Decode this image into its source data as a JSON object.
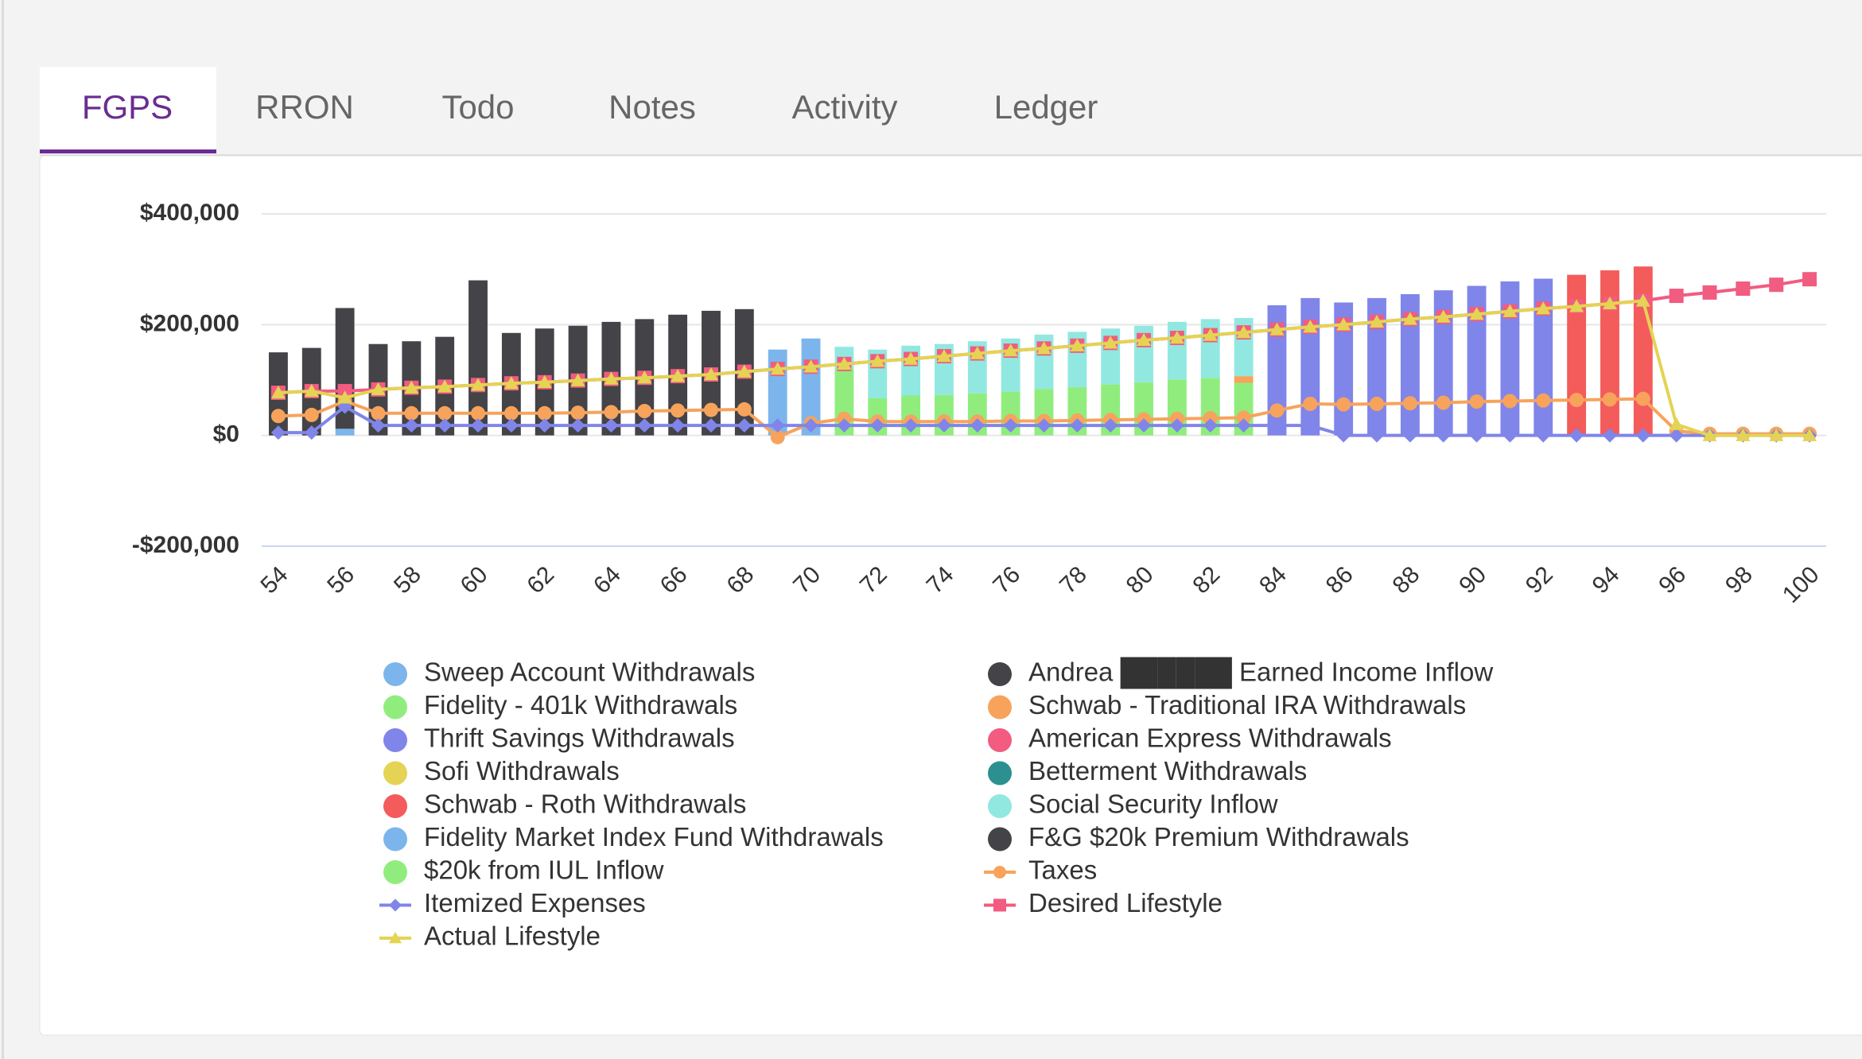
{
  "tabs": [
    "FGPS",
    "RRON",
    "Todo",
    "Notes",
    "Activity",
    "Ledger"
  ],
  "active_tab": 0,
  "chart_data": {
    "type": "bar",
    "stacked": true,
    "categories": [
      "54",
      null,
      "56",
      null,
      "58",
      null,
      "60",
      null,
      "62",
      null,
      "64",
      null,
      "66",
      null,
      "68",
      null,
      "70",
      null,
      "72",
      null,
      "74",
      null,
      "76",
      null,
      "78",
      null,
      "80",
      null,
      "82",
      null,
      "84",
      null,
      "86",
      null,
      "88",
      null,
      "90",
      null,
      "92",
      null,
      "94",
      null,
      "96",
      null,
      "98",
      null,
      "100"
    ],
    "ylim": [
      -200000,
      400000
    ],
    "yticks": [
      {
        "value": -200000,
        "label": "-$200,000"
      },
      {
        "value": 0,
        "label": "$0"
      },
      {
        "value": 200000,
        "label": "$200,000"
      },
      {
        "value": 400000,
        "label": "$400,000"
      }
    ],
    "grid": true,
    "series": [
      {
        "name": "Sweep Account Withdrawals",
        "color": "#7cb5ec",
        "values": [
          0,
          0,
          12000,
          0,
          0,
          0,
          0,
          0,
          0,
          0,
          0,
          0,
          0,
          0,
          0,
          0,
          25000,
          0,
          0,
          0,
          0,
          0,
          0,
          0,
          0,
          0,
          0,
          0,
          0,
          0,
          0,
          0,
          0,
          0,
          0,
          0,
          0,
          0,
          0,
          0,
          0,
          0,
          0,
          0,
          0,
          0,
          0
        ]
      },
      {
        "name": "Andrea ██████ Earned Income Inflow",
        "color": "#434348",
        "values": [
          150000,
          158000,
          218000,
          165000,
          170000,
          178000,
          280000,
          185000,
          193000,
          198000,
          205000,
          210000,
          218000,
          225000,
          228000,
          0,
          0,
          0,
          0,
          0,
          0,
          0,
          0,
          0,
          0,
          0,
          0,
          0,
          0,
          0,
          0,
          0,
          0,
          0,
          0,
          0,
          0,
          0,
          0,
          0,
          0,
          0,
          0,
          0,
          0,
          0,
          0
        ]
      },
      {
        "name": "Fidelity - 401k Withdrawals",
        "color": "#90ed7d",
        "values": [
          0,
          0,
          0,
          0,
          0,
          0,
          0,
          0,
          0,
          0,
          0,
          0,
          0,
          0,
          0,
          0,
          0,
          120000,
          67000,
          72000,
          73000,
          76000,
          79000,
          84000,
          87000,
          92000,
          96000,
          101000,
          104000,
          95000,
          0,
          0,
          0,
          0,
          0,
          0,
          0,
          0,
          0,
          0,
          0,
          0,
          0,
          0,
          0,
          0,
          0
        ]
      },
      {
        "name": "Schwab - Traditional IRA Withdrawals",
        "color": "#f7a35c",
        "values": [
          0,
          0,
          0,
          0,
          0,
          0,
          0,
          0,
          0,
          0,
          0,
          0,
          0,
          0,
          0,
          0,
          0,
          0,
          0,
          0,
          0,
          0,
          0,
          0,
          0,
          0,
          0,
          0,
          0,
          12000,
          0,
          0,
          0,
          0,
          0,
          0,
          0,
          0,
          0,
          0,
          0,
          0,
          0,
          0,
          0,
          0,
          0
        ]
      },
      {
        "name": "Thrift Savings Withdrawals",
        "color": "#8085e9",
        "values": [
          0,
          0,
          0,
          0,
          0,
          0,
          0,
          0,
          0,
          0,
          0,
          0,
          0,
          0,
          0,
          0,
          0,
          0,
          0,
          0,
          0,
          0,
          0,
          0,
          0,
          0,
          0,
          0,
          0,
          0,
          235000,
          248000,
          240000,
          248000,
          255000,
          262000,
          270000,
          278000,
          283000,
          0,
          0,
          0,
          0,
          0,
          0,
          0,
          0
        ]
      },
      {
        "name": "American Express Withdrawals",
        "color": "#f15c80",
        "values": [
          0,
          0,
          0,
          0,
          0,
          0,
          0,
          0,
          0,
          0,
          0,
          0,
          0,
          0,
          0,
          0,
          0,
          0,
          0,
          0,
          0,
          0,
          0,
          0,
          0,
          0,
          0,
          0,
          0,
          0,
          0,
          0,
          0,
          0,
          0,
          0,
          0,
          0,
          0,
          0,
          0,
          0,
          0,
          0,
          0,
          0,
          0
        ]
      },
      {
        "name": "Sofi Withdrawals",
        "color": "#e4d354",
        "values": [
          0,
          0,
          0,
          0,
          0,
          0,
          0,
          0,
          0,
          0,
          0,
          0,
          0,
          0,
          0,
          0,
          0,
          0,
          0,
          0,
          0,
          0,
          0,
          0,
          0,
          0,
          0,
          0,
          0,
          0,
          0,
          0,
          0,
          0,
          0,
          0,
          0,
          0,
          0,
          0,
          0,
          0,
          0,
          0,
          0,
          0,
          0
        ]
      },
      {
        "name": "Betterment Withdrawals",
        "color": "#2b908f",
        "values": [
          0,
          0,
          0,
          0,
          0,
          0,
          0,
          0,
          0,
          0,
          0,
          0,
          0,
          0,
          0,
          0,
          0,
          0,
          0,
          0,
          0,
          0,
          0,
          0,
          0,
          0,
          0,
          0,
          0,
          0,
          0,
          0,
          0,
          0,
          0,
          0,
          0,
          0,
          0,
          0,
          0,
          0,
          0,
          0,
          0,
          0,
          0
        ]
      },
      {
        "name": "Schwab - Roth Withdrawals",
        "color": "#f45b5b",
        "values": [
          0,
          0,
          0,
          0,
          0,
          0,
          0,
          0,
          0,
          0,
          0,
          0,
          0,
          0,
          0,
          0,
          0,
          0,
          0,
          0,
          0,
          0,
          0,
          0,
          0,
          0,
          0,
          0,
          0,
          0,
          0,
          0,
          0,
          0,
          0,
          0,
          0,
          0,
          0,
          290000,
          298000,
          305000,
          0,
          0,
          0,
          0,
          0
        ]
      },
      {
        "name": "Social Security Inflow",
        "color": "#91e8e1",
        "values": [
          0,
          0,
          0,
          0,
          0,
          0,
          0,
          0,
          0,
          0,
          0,
          0,
          0,
          0,
          0,
          0,
          0,
          40000,
          88000,
          90000,
          92000,
          94000,
          96000,
          98000,
          100000,
          101000,
          102000,
          104000,
          106000,
          105000,
          0,
          0,
          0,
          0,
          0,
          0,
          0,
          0,
          0,
          0,
          0,
          0,
          0,
          0,
          0,
          0,
          0
        ]
      },
      {
        "name": "Fidelity Market Index Fund Withdrawals",
        "color": "#7cb5ec",
        "values": [
          0,
          0,
          0,
          0,
          0,
          0,
          0,
          0,
          0,
          0,
          0,
          0,
          0,
          0,
          0,
          155000,
          150000,
          0,
          0,
          0,
          0,
          0,
          0,
          0,
          0,
          0,
          0,
          0,
          0,
          0,
          0,
          0,
          0,
          0,
          0,
          0,
          0,
          0,
          0,
          0,
          0,
          0,
          0,
          0,
          0,
          0,
          0
        ]
      },
      {
        "name": "F&G $20k Premium Withdrawals",
        "color": "#434348",
        "values": [
          0,
          0,
          0,
          0,
          0,
          0,
          0,
          0,
          0,
          0,
          0,
          0,
          0,
          0,
          0,
          0,
          0,
          0,
          0,
          0,
          0,
          0,
          0,
          0,
          0,
          0,
          0,
          0,
          0,
          0,
          0,
          0,
          0,
          0,
          0,
          0,
          0,
          0,
          0,
          0,
          0,
          0,
          0,
          0,
          0,
          0,
          0
        ]
      },
      {
        "name": "$20k from IUL Inflow",
        "color": "#90ed7d",
        "values": [
          0,
          0,
          0,
          0,
          0,
          0,
          0,
          0,
          0,
          0,
          0,
          0,
          0,
          0,
          0,
          0,
          0,
          0,
          0,
          0,
          0,
          0,
          0,
          0,
          0,
          0,
          0,
          0,
          0,
          0,
          0,
          0,
          0,
          0,
          0,
          0,
          0,
          0,
          0,
          0,
          0,
          0,
          0,
          0,
          0,
          0,
          0
        ]
      },
      {
        "name": "Taxes",
        "type": "line",
        "marker": "circle",
        "color": "#f7a35c",
        "values": [
          35000,
          37000,
          62000,
          40000,
          40000,
          40000,
          40000,
          40000,
          40000,
          41000,
          42000,
          44000,
          45000,
          46000,
          47000,
          -3000,
          22000,
          30000,
          25000,
          25000,
          25000,
          25000,
          26000,
          26000,
          27000,
          28000,
          29000,
          30000,
          31000,
          32000,
          45000,
          57000,
          56000,
          57000,
          58000,
          59000,
          61000,
          62000,
          63000,
          64000,
          65000,
          66000,
          8000,
          3000,
          3000,
          3000,
          3000
        ]
      },
      {
        "name": "Itemized Expenses",
        "type": "line",
        "marker": "diamond",
        "color": "#8085e9",
        "values": [
          5000,
          5000,
          52000,
          18000,
          18000,
          18000,
          18000,
          18000,
          18000,
          18000,
          18000,
          18000,
          18000,
          18000,
          18000,
          18000,
          18000,
          18000,
          18000,
          18000,
          18000,
          18000,
          18000,
          18000,
          18000,
          18000,
          18000,
          18000,
          18000,
          18000,
          18000,
          18000,
          0,
          0,
          0,
          0,
          0,
          0,
          0,
          0,
          0,
          0,
          0,
          0,
          0,
          0,
          0
        ]
      },
      {
        "name": "Desired Lifestyle",
        "type": "line",
        "marker": "square",
        "color": "#f15c80",
        "values": [
          77000,
          80000,
          80000,
          83000,
          86000,
          88000,
          91000,
          94000,
          96000,
          99000,
          102000,
          104000,
          107000,
          110000,
          115000,
          120000,
          124000,
          129000,
          134000,
          138000,
          143000,
          148000,
          153000,
          157000,
          162000,
          167000,
          172000,
          176000,
          181000,
          186000,
          191000,
          196000,
          200000,
          205000,
          210000,
          214000,
          219000,
          224000,
          229000,
          233000,
          238000,
          243000,
          252000,
          258000,
          265000,
          272000,
          282000
        ]
      },
      {
        "name": "Actual Lifestyle",
        "type": "line",
        "marker": "triangle",
        "color": "#e4d354",
        "values": [
          77000,
          80000,
          68000,
          83000,
          86000,
          88000,
          91000,
          94000,
          96000,
          99000,
          102000,
          104000,
          107000,
          110000,
          115000,
          120000,
          124000,
          129000,
          134000,
          138000,
          143000,
          148000,
          153000,
          157000,
          162000,
          167000,
          172000,
          176000,
          181000,
          186000,
          191000,
          196000,
          200000,
          205000,
          210000,
          214000,
          219000,
          224000,
          229000,
          233000,
          238000,
          243000,
          20000,
          0,
          0,
          0,
          0
        ]
      }
    ]
  }
}
